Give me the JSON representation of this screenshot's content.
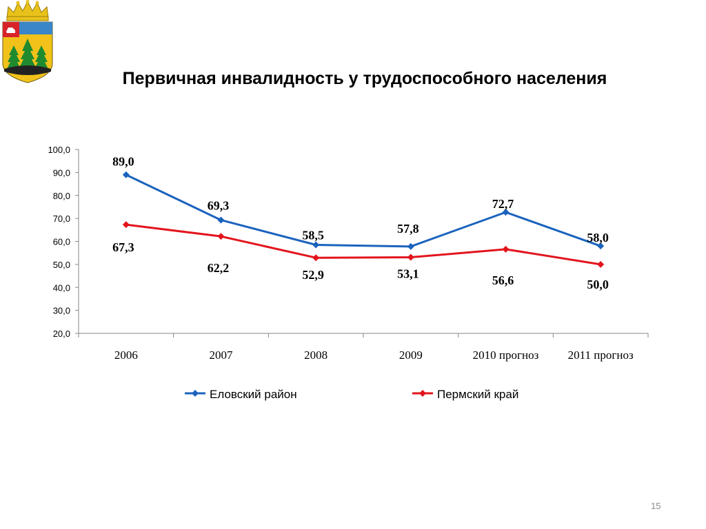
{
  "slide": {
    "title": "Первичная инвалидность у трудоспособного населения",
    "page_number": "15"
  },
  "colors": {
    "series1": "#1b63bd",
    "series2": "#e3141c",
    "axis": "#868686"
  },
  "chart_data": {
    "type": "line",
    "title": "Первичная инвалидность у трудоспособного населения",
    "categories": [
      "2006",
      "2007",
      "2008",
      "2009",
      "2010 прогноз",
      "2011 прогноз"
    ],
    "series": [
      {
        "name": "Еловский район",
        "values": [
          89.0,
          69.3,
          58.5,
          57.8,
          72.7,
          58.0
        ],
        "labels": [
          "89,0",
          "69,3",
          "58,5",
          "57,8",
          "72,7",
          "58,0"
        ],
        "color": "#1b63bd",
        "marker": "diamond"
      },
      {
        "name": "Пермский край",
        "values": [
          67.3,
          62.2,
          52.9,
          53.1,
          56.6,
          50.0
        ],
        "labels": [
          "67,3",
          "62,2",
          "52,9",
          "53,1",
          "56,6",
          "50,0"
        ],
        "color": "#e3141c",
        "marker": "diamond"
      }
    ],
    "yticks": [
      "20,0",
      "30,0",
      "40,0",
      "50,0",
      "60,0",
      "70,0",
      "80,0",
      "90,0",
      "100,0"
    ],
    "ylim": [
      20,
      100
    ],
    "xlabel": "",
    "ylabel": "",
    "grid": false,
    "legend": "bottom"
  }
}
